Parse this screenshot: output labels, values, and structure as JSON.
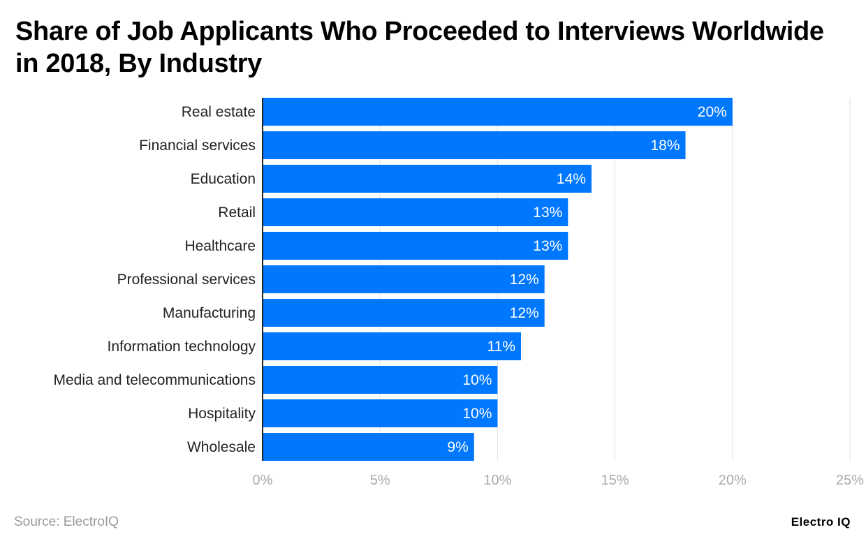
{
  "chart_data": {
    "type": "bar",
    "orientation": "horizontal",
    "title": "Share of Job Applicants Who Proceeded to Interviews Worldwide in 2018, By Industry",
    "categories": [
      "Real estate",
      "Financial services",
      "Education",
      "Retail",
      "Healthcare",
      "Professional services",
      "Manufacturing",
      "Information technology",
      "Media and telecommunications",
      "Hospitality",
      "Wholesale"
    ],
    "values": [
      20,
      18,
      14,
      13,
      13,
      12,
      12,
      11,
      10,
      10,
      9
    ],
    "data_labels": [
      "20%",
      "18%",
      "14%",
      "13%",
      "13%",
      "12%",
      "12%",
      "11%",
      "10%",
      "10%",
      "9%"
    ],
    "xlim": [
      0,
      25
    ],
    "xticks": [
      0,
      5,
      10,
      15,
      20,
      25
    ],
    "xtick_labels": [
      "0%",
      "5%",
      "10%",
      "15%",
      "20%",
      "25%"
    ],
    "grid": true,
    "bar_color": "#0077FF"
  },
  "footer": {
    "source": "Source: ElectroIQ",
    "logo": "Electro IQ"
  }
}
